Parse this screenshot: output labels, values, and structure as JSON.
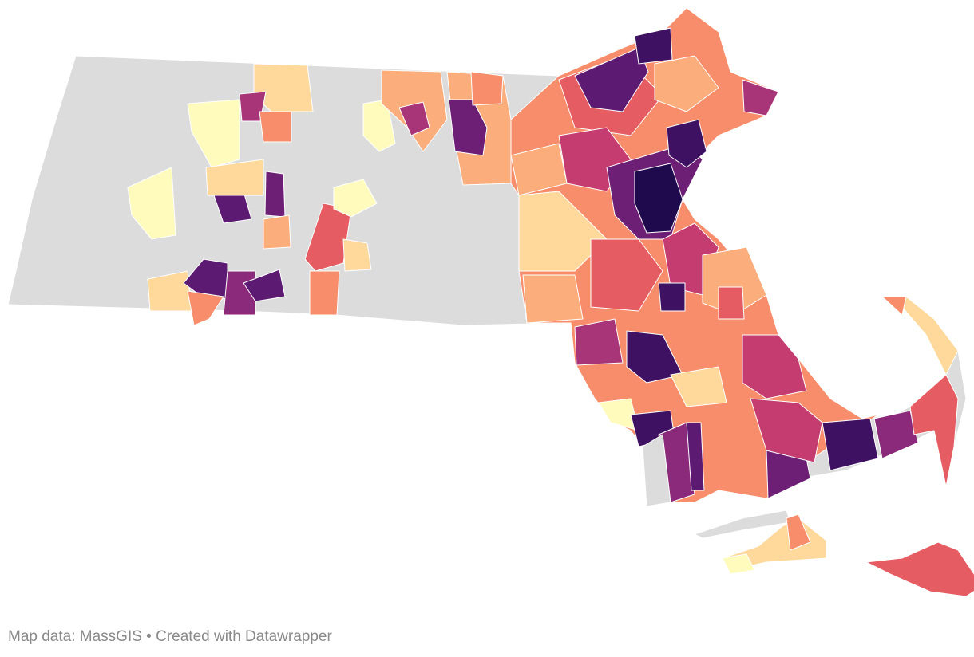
{
  "footer": {
    "credit": "Map data: MassGIS • Created with Datawrapper"
  }
}
